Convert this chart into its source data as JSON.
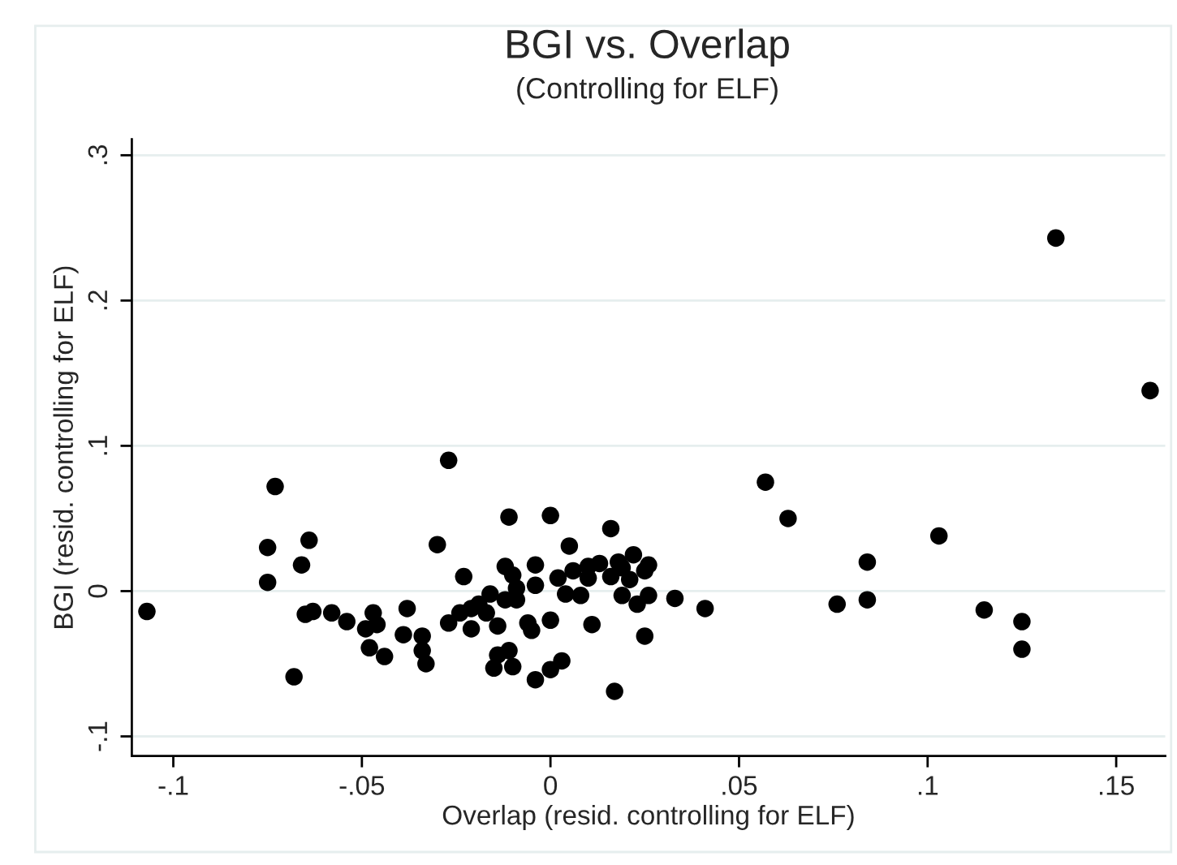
{
  "chart_data": {
    "type": "scatter",
    "title": "BGI vs. Overlap",
    "subtitle": "(Controlling for ELF)",
    "xlabel": "Overlap (resid. controlling for ELF)",
    "ylabel": "BGI (resid. controlling for ELF)",
    "series": [
      {
        "color": "#000000",
        "x": [
          -0.107,
          -0.073,
          -0.075,
          -0.075,
          -0.064,
          -0.066,
          -0.068,
          -0.065,
          -0.063,
          -0.058,
          -0.054,
          -0.047,
          -0.049,
          -0.046,
          -0.048,
          -0.044,
          -0.038,
          -0.039,
          -0.034,
          -0.034,
          -0.033,
          -0.03,
          -0.027,
          -0.027,
          -0.023,
          -0.024,
          -0.021,
          -0.021,
          -0.019,
          -0.017,
          -0.016,
          -0.014,
          -0.014,
          -0.015,
          -0.011,
          -0.01,
          -0.011,
          -0.012,
          -0.01,
          -0.012,
          -0.009,
          -0.009,
          -0.004,
          -0.004,
          -0.006,
          -0.005,
          -0.004,
          0.0,
          0.0,
          0.002,
          0.005,
          0.006,
          0.004,
          0.0,
          0.003,
          0.008,
          0.01,
          0.01,
          0.013,
          0.016,
          0.016,
          0.011,
          0.017,
          0.018,
          0.019,
          0.021,
          0.019,
          0.022,
          0.026,
          0.025,
          0.023,
          0.026,
          0.025,
          0.033,
          0.041,
          0.134,
          0.159,
          0.057,
          0.063,
          0.103,
          0.084,
          0.076,
          0.084,
          0.115,
          0.125,
          0.125
        ],
        "values": [
          -0.014,
          0.072,
          0.03,
          0.006,
          0.035,
          0.018,
          -0.059,
          -0.016,
          -0.014,
          -0.015,
          -0.021,
          -0.015,
          -0.026,
          -0.023,
          -0.039,
          -0.045,
          -0.012,
          -0.03,
          -0.031,
          -0.041,
          -0.05,
          0.032,
          -0.022,
          0.09,
          0.01,
          -0.015,
          -0.026,
          -0.012,
          -0.009,
          -0.015,
          -0.002,
          -0.024,
          -0.044,
          -0.053,
          -0.041,
          -0.052,
          0.051,
          0.017,
          0.011,
          -0.006,
          0.002,
          -0.006,
          0.018,
          0.004,
          -0.022,
          -0.027,
          -0.061,
          -0.02,
          0.052,
          0.009,
          0.031,
          0.014,
          -0.002,
          -0.054,
          -0.048,
          -0.003,
          0.017,
          0.009,
          0.019,
          0.043,
          0.01,
          -0.023,
          -0.069,
          0.02,
          0.016,
          0.008,
          -0.003,
          0.025,
          0.018,
          0.014,
          -0.009,
          -0.003,
          -0.031,
          -0.005,
          -0.012,
          0.243,
          0.138,
          0.075,
          0.05,
          0.038,
          0.02,
          -0.009,
          -0.006,
          -0.013,
          -0.021,
          -0.04
        ]
      }
    ],
    "marker": "circle",
    "grid": "y",
    "xlim": [
      -0.111,
      0.163
    ],
    "ylim": [
      -0.1135,
      0.311
    ],
    "xticks": [
      {
        "value": -0.1,
        "label": "-.1"
      },
      {
        "value": -0.05,
        "label": "-.05"
      },
      {
        "value": 0,
        "label": "0"
      },
      {
        "value": 0.05,
        "label": ".05"
      },
      {
        "value": 0.1,
        "label": ".1"
      },
      {
        "value": 0.15,
        "label": ".15"
      }
    ],
    "yticks": [
      {
        "value": -0.1,
        "label": "-.1"
      },
      {
        "value": 0,
        "label": "0"
      },
      {
        "value": 0.1,
        "label": ".1"
      },
      {
        "value": 0.2,
        "label": ".2"
      },
      {
        "value": 0.3,
        "label": ".3"
      }
    ]
  }
}
